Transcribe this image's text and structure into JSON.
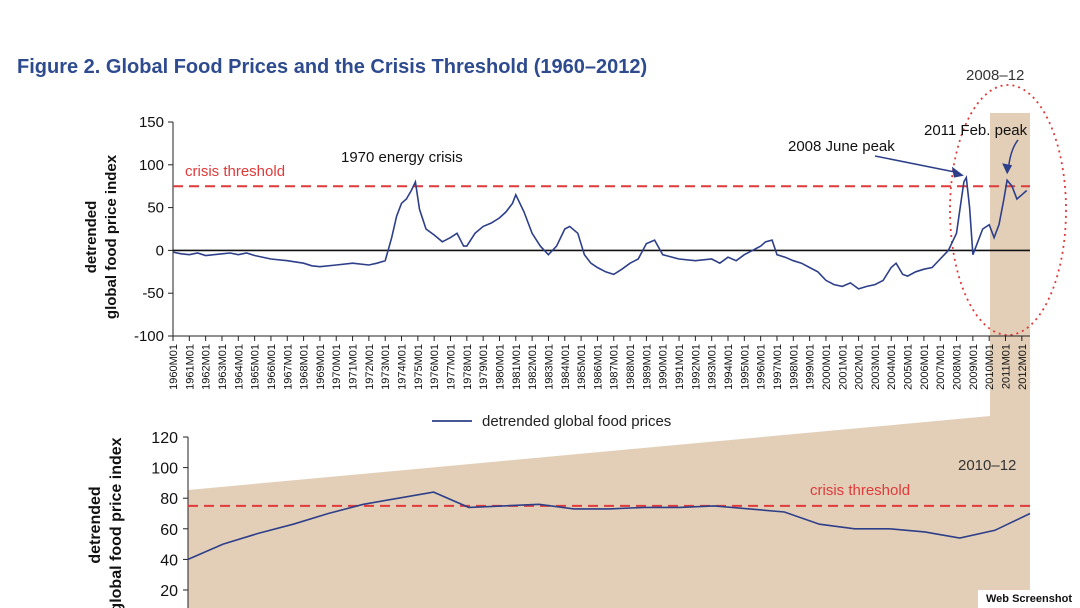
{
  "figure": {
    "title": "Figure 2.  Global Food Prices and the Crisis Threshold (1960–2012)"
  },
  "badge": {
    "label": "Web Screenshot"
  },
  "colors": {
    "series": "#2e3f8a",
    "threshold": "#e03a3a",
    "highlight": "#e3cfb8",
    "title": "#2e4b8f"
  },
  "chart_data": [
    {
      "type": "line",
      "ylabel": [
        "detrended",
        "global food price  index"
      ],
      "ylim": [
        -100,
        150
      ],
      "yticks": [
        -100,
        -50,
        0,
        50,
        100,
        150
      ],
      "ytick_labels": [
        "-100",
        "-50",
        "0",
        "50",
        "100",
        "150"
      ],
      "x_tick_labels": [
        "1960M01",
        "1961M01",
        "1962M01",
        "1963M01",
        "1964M01",
        "1965M01",
        "1966M01",
        "1967M01",
        "1968M01",
        "1969M01",
        "1970M01",
        "1971M01",
        "1972M01",
        "1973M01",
        "1974M01",
        "1975M01",
        "1976M01",
        "1977M01",
        "1978M01",
        "1979M01",
        "1980M01",
        "1981M01",
        "1982M01",
        "1983M01",
        "1984M01",
        "1985M01",
        "1986M01",
        "1987M01",
        "1988M01",
        "1989M01",
        "1990M01",
        "1991M01",
        "1992M01",
        "1993M01",
        "1994M01",
        "1995M01",
        "1996M01",
        "1997M01",
        "1998M01",
        "1999M01",
        "2000M01",
        "2001M01",
        "2002M01",
        "2003M01",
        "2004M01",
        "2005M01",
        "2006M01",
        "2007M01",
        "2008M01",
        "2009M01",
        "2010M01",
        "2011M01",
        "2012M01"
      ],
      "threshold": {
        "value": 75,
        "label": "crisis threshold"
      },
      "highlight_label": "2008–12",
      "annotations": {
        "energy": "1970 energy crisis",
        "june2008": "2008 June peak",
        "feb2011": "2011 Feb. peak"
      },
      "legend": "detrended global food prices",
      "series": [
        {
          "name": "detrended global food prices",
          "x": [
            1960.0,
            1960.5,
            1961.0,
            1961.5,
            1962.0,
            1963.0,
            1963.5,
            1964.0,
            1964.5,
            1965.0,
            1966.0,
            1967.0,
            1968.0,
            1968.5,
            1969.0,
            1970.0,
            1971.0,
            1972.0,
            1972.5,
            1973.0,
            1973.4,
            1973.7,
            1974.0,
            1974.3,
            1974.6,
            1974.85,
            1975.1,
            1975.5,
            1976.0,
            1976.5,
            1977.0,
            1977.4,
            1977.8,
            1978.0,
            1978.5,
            1979.0,
            1979.5,
            1980.0,
            1980.4,
            1980.8,
            1981.0,
            1981.5,
            1982.0,
            1982.5,
            1983.0,
            1983.5,
            1984.0,
            1984.3,
            1984.8,
            1985.2,
            1985.6,
            1986.0,
            1986.5,
            1987.0,
            1987.5,
            1988.0,
            1988.5,
            1989.0,
            1989.5,
            1990.0,
            1991.0,
            1992.0,
            1993.0,
            1993.5,
            1994.0,
            1994.5,
            1995.0,
            1995.5,
            1996.0,
            1996.3,
            1996.7,
            1997.0,
            1997.5,
            1998.0,
            1998.5,
            1999.0,
            1999.5,
            2000.0,
            2000.5,
            2001.0,
            2001.5,
            2002.0,
            2002.5,
            2003.0,
            2003.5,
            2004.0,
            2004.3,
            2004.7,
            2005.0,
            2005.5,
            2006.0,
            2006.5,
            2007.0,
            2007.5,
            2008.0,
            2008.3,
            2008.45,
            2008.6,
            2008.8,
            2009.0,
            2009.3,
            2009.6,
            2010.0,
            2010.3,
            2010.6,
            2010.9,
            2011.1,
            2011.4,
            2011.7,
            2012.0,
            2012.3
          ],
          "y": [
            -2,
            -4,
            -5,
            -3,
            -6,
            -4,
            -3,
            -5,
            -3,
            -6,
            -10,
            -12,
            -15,
            -18,
            -19,
            -17,
            -15,
            -17,
            -15,
            -12,
            15,
            40,
            55,
            60,
            70,
            80,
            48,
            25,
            18,
            10,
            15,
            20,
            5,
            5,
            20,
            28,
            32,
            38,
            45,
            55,
            65,
            45,
            20,
            5,
            -5,
            5,
            25,
            28,
            20,
            -5,
            -15,
            -20,
            -25,
            -28,
            -22,
            -15,
            -10,
            8,
            12,
            -5,
            -10,
            -12,
            -10,
            -15,
            -8,
            -12,
            -5,
            0,
            5,
            10,
            12,
            -5,
            -8,
            -12,
            -15,
            -20,
            -25,
            -35,
            -40,
            -42,
            -38,
            -45,
            -42,
            -40,
            -35,
            -20,
            -15,
            -28,
            -30,
            -25,
            -22,
            -20,
            -10,
            0,
            20,
            60,
            80,
            85,
            50,
            -5,
            10,
            25,
            30,
            15,
            30,
            60,
            82,
            75,
            60,
            65,
            70
          ]
        }
      ]
    },
    {
      "type": "line",
      "ylabel": [
        "detrended",
        "global food price index"
      ],
      "ylim": [
        0,
        120
      ],
      "yticks": [
        20,
        40,
        60,
        80,
        100,
        120
      ],
      "ytick_labels": [
        "20",
        "40",
        "60",
        "80",
        "100",
        "120"
      ],
      "threshold": {
        "value": 75,
        "label": "crisis threshold"
      },
      "period_label": "2010–12",
      "series": [
        {
          "name": "detrended global food prices",
          "x": [
            0,
            1,
            2,
            3,
            4,
            5,
            6,
            7,
            8,
            9,
            10,
            11,
            12,
            13,
            14,
            15,
            16,
            17,
            18,
            19,
            20,
            21,
            22,
            23,
            24
          ],
          "y": [
            40,
            50,
            57,
            63,
            70,
            76,
            80,
            84,
            74,
            75,
            76,
            73,
            73,
            74,
            74,
            75,
            73,
            71,
            63,
            60,
            60,
            58,
            54,
            59,
            70
          ]
        }
      ]
    }
  ]
}
